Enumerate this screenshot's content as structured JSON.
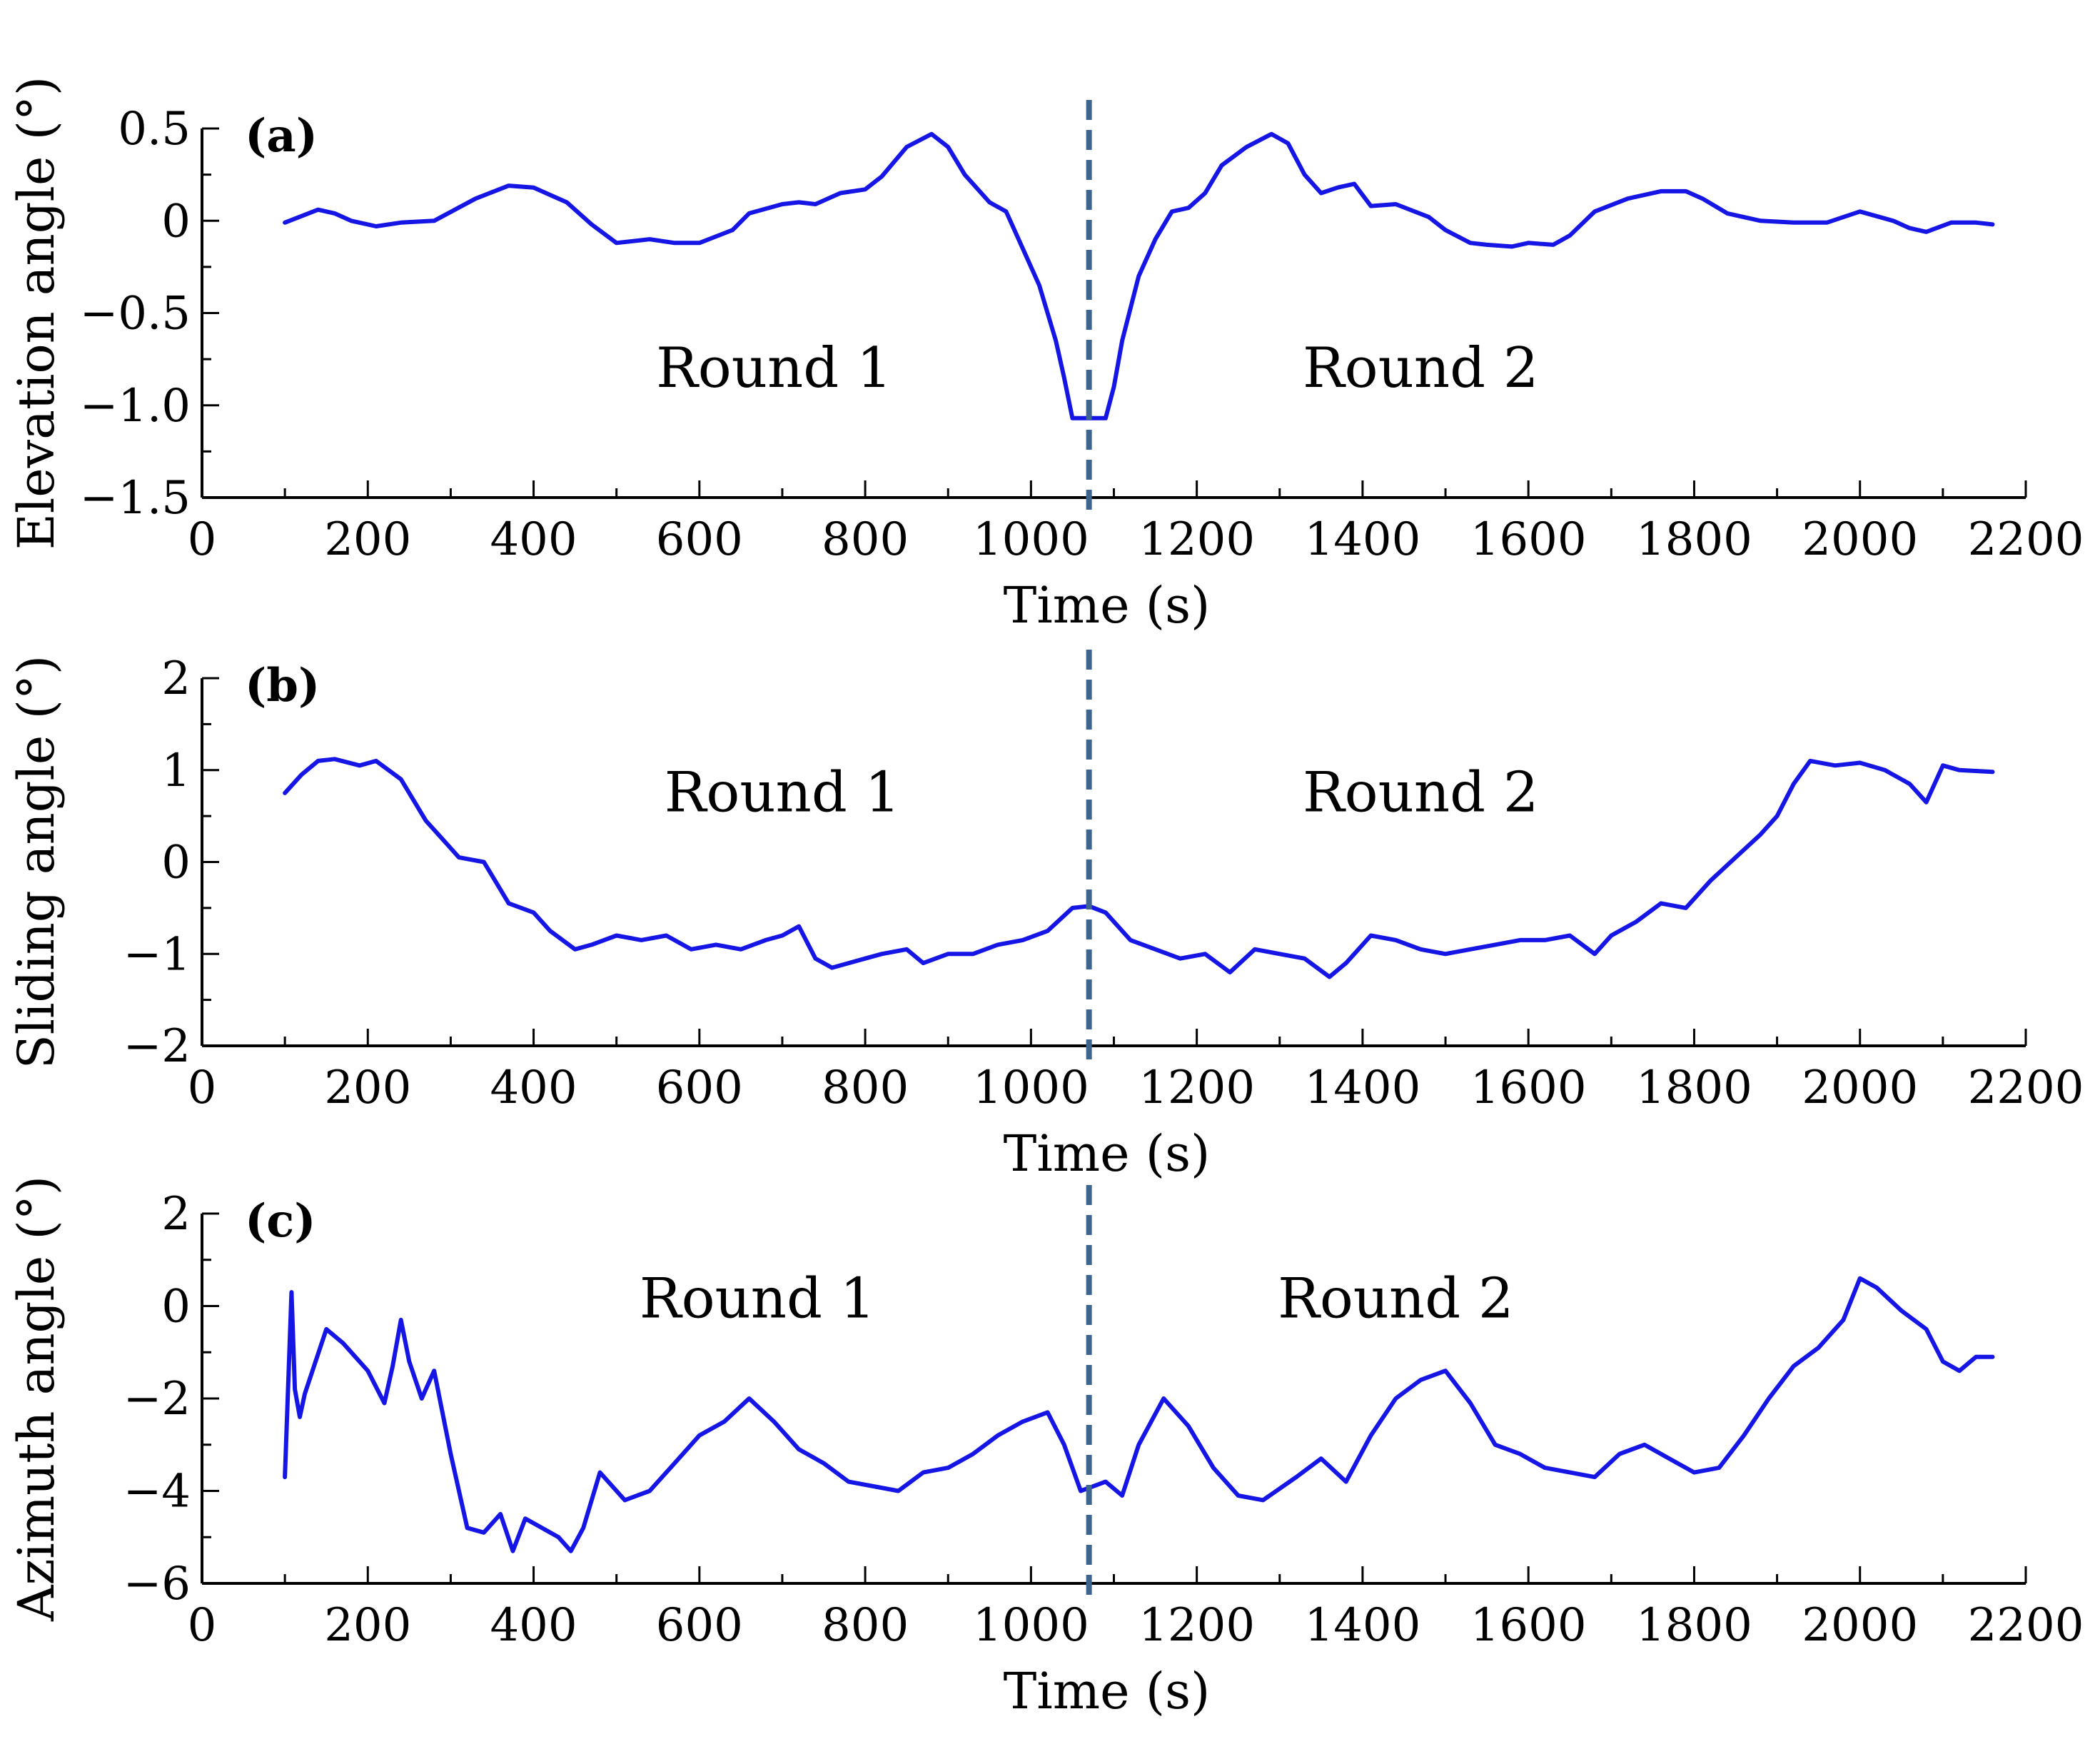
{
  "colors": {
    "series": "#1515e6",
    "divider": "#3d6590"
  },
  "chart_data": [
    {
      "type": "line",
      "panel": "(a)",
      "xlabel": "Time (s)",
      "ylabel": "Elevation angle (°)",
      "xlim": [
        0,
        2200
      ],
      "ylim": [
        -1.5,
        0.5
      ],
      "xticks": [
        0,
        200,
        400,
        600,
        800,
        1000,
        1200,
        1400,
        1600,
        1800,
        2000,
        2200
      ],
      "xtick_labels": [
        "0",
        "200",
        "400",
        "600",
        "800",
        "1000",
        "1200",
        "1400",
        "1600",
        "1800",
        "2000",
        "2200"
      ],
      "yticks": [
        -1.5,
        -1.0,
        -0.5,
        0,
        0.5
      ],
      "ytick_labels": [
        "−1.5",
        "−1.0",
        "−0.5",
        "0",
        "0.5"
      ],
      "divider_x": 1070,
      "annotations": [
        {
          "text": "Round 1",
          "x": 690,
          "y": -0.9
        },
        {
          "text": "Round 2",
          "x": 1470,
          "y": -0.9
        }
      ],
      "series": [
        {
          "name": "Elevation angle",
          "x": [
            100,
            140,
            160,
            180,
            210,
            240,
            280,
            330,
            370,
            400,
            440,
            470,
            500,
            540,
            570,
            600,
            640,
            660,
            700,
            720,
            740,
            770,
            800,
            820,
            850,
            880,
            900,
            920,
            950,
            970,
            990,
            1010,
            1030,
            1040,
            1050,
            1060,
            1070,
            1080,
            1090,
            1100,
            1110,
            1130,
            1150,
            1170,
            1190,
            1210,
            1230,
            1260,
            1290,
            1310,
            1330,
            1350,
            1370,
            1390,
            1410,
            1440,
            1480,
            1500,
            1530,
            1550,
            1580,
            1600,
            1630,
            1650,
            1680,
            1720,
            1760,
            1790,
            1810,
            1840,
            1880,
            1920,
            1960,
            2000,
            2040,
            2060,
            2080,
            2110,
            2140,
            2160
          ],
          "y": [
            -0.01,
            0.06,
            0.04,
            0.0,
            -0.03,
            -0.01,
            0.0,
            0.12,
            0.19,
            0.18,
            0.1,
            -0.02,
            -0.12,
            -0.1,
            -0.12,
            -0.12,
            -0.05,
            0.04,
            0.09,
            0.1,
            0.09,
            0.15,
            0.17,
            0.24,
            0.4,
            0.47,
            0.4,
            0.25,
            0.1,
            0.05,
            -0.15,
            -0.35,
            -0.65,
            -0.85,
            -1.07,
            -1.07,
            -1.07,
            -1.07,
            -1.07,
            -0.9,
            -0.65,
            -0.3,
            -0.1,
            0.05,
            0.07,
            0.15,
            0.3,
            0.4,
            0.47,
            0.42,
            0.25,
            0.15,
            0.18,
            0.2,
            0.08,
            0.09,
            0.02,
            -0.05,
            -0.12,
            -0.13,
            -0.14,
            -0.12,
            -0.13,
            -0.08,
            0.05,
            0.12,
            0.16,
            0.16,
            0.12,
            0.04,
            0.0,
            -0.01,
            -0.01,
            0.05,
            0.0,
            -0.04,
            -0.06,
            -0.01,
            -0.01,
            -0.02
          ]
        }
      ]
    },
    {
      "type": "line",
      "panel": "(b)",
      "xlabel": "Time (s)",
      "ylabel": "Sliding angle (°)",
      "xlim": [
        0,
        2200
      ],
      "ylim": [
        -2,
        2
      ],
      "xticks": [
        0,
        200,
        400,
        600,
        800,
        1000,
        1200,
        1400,
        1600,
        1800,
        2000,
        2200
      ],
      "xtick_labels": [
        "0",
        "200",
        "400",
        "600",
        "800",
        "1000",
        "1200",
        "1400",
        "1600",
        "1800",
        "2000",
        "2200"
      ],
      "yticks": [
        -2,
        -1,
        0,
        1,
        2
      ],
      "ytick_labels": [
        "−2",
        "−1",
        "0",
        "1",
        "2"
      ],
      "divider_x": 1070,
      "annotations": [
        {
          "text": "Round 1",
          "x": 700,
          "y": 0.55
        },
        {
          "text": "Round 2",
          "x": 1470,
          "y": 0.55
        }
      ],
      "series": [
        {
          "name": "Sliding angle",
          "x": [
            100,
            120,
            140,
            160,
            190,
            210,
            240,
            270,
            290,
            310,
            340,
            370,
            400,
            420,
            450,
            470,
            500,
            530,
            560,
            590,
            620,
            650,
            680,
            700,
            720,
            740,
            760,
            780,
            800,
            820,
            850,
            870,
            900,
            930,
            960,
            990,
            1020,
            1050,
            1070,
            1090,
            1120,
            1150,
            1180,
            1210,
            1240,
            1270,
            1300,
            1330,
            1360,
            1380,
            1410,
            1440,
            1470,
            1500,
            1530,
            1560,
            1590,
            1620,
            1650,
            1680,
            1700,
            1730,
            1760,
            1790,
            1820,
            1850,
            1880,
            1900,
            1920,
            1940,
            1970,
            2000,
            2030,
            2060,
            2080,
            2100,
            2120,
            2160
          ],
          "y": [
            0.75,
            0.95,
            1.1,
            1.12,
            1.05,
            1.1,
            0.9,
            0.45,
            0.25,
            0.05,
            0.0,
            -0.45,
            -0.55,
            -0.75,
            -0.95,
            -0.9,
            -0.8,
            -0.85,
            -0.8,
            -0.95,
            -0.9,
            -0.95,
            -0.85,
            -0.8,
            -0.7,
            -1.05,
            -1.15,
            -1.1,
            -1.05,
            -1.0,
            -0.95,
            -1.1,
            -1.0,
            -1.0,
            -0.9,
            -0.85,
            -0.75,
            -0.5,
            -0.48,
            -0.55,
            -0.85,
            -0.95,
            -1.05,
            -1.0,
            -1.2,
            -0.95,
            -1.0,
            -1.05,
            -1.25,
            -1.1,
            -0.8,
            -0.85,
            -0.95,
            -1.0,
            -0.95,
            -0.9,
            -0.85,
            -0.85,
            -0.8,
            -1.0,
            -0.8,
            -0.65,
            -0.45,
            -0.5,
            -0.2,
            0.05,
            0.3,
            0.5,
            0.85,
            1.1,
            1.05,
            1.08,
            1.0,
            0.85,
            0.65,
            1.05,
            1.0,
            0.98
          ]
        }
      ]
    },
    {
      "type": "line",
      "panel": "(c)",
      "xlabel": "Time (s)",
      "ylabel": "Azimuth angle (°)",
      "xlim": [
        0,
        2200
      ],
      "ylim": [
        -6,
        2
      ],
      "xticks": [
        0,
        200,
        400,
        600,
        800,
        1000,
        1200,
        1400,
        1600,
        1800,
        2000,
        2200
      ],
      "xtick_labels": [
        "0",
        "200",
        "400",
        "600",
        "800",
        "1000",
        "1200",
        "1400",
        "1600",
        "1800",
        "2000",
        "2200"
      ],
      "yticks": [
        -6,
        -4,
        -2,
        0,
        2
      ],
      "ytick_labels": [
        "−6",
        "−4",
        "−2",
        "0",
        "2"
      ],
      "divider_x": 1070,
      "annotations": [
        {
          "text": "Round 1",
          "x": 670,
          "y": -0.25
        },
        {
          "text": "Round 2",
          "x": 1440,
          "y": -0.25
        }
      ],
      "series": [
        {
          "name": "Azimuth angle",
          "x": [
            100,
            108,
            112,
            118,
            124,
            150,
            170,
            200,
            220,
            230,
            240,
            250,
            265,
            280,
            300,
            320,
            340,
            360,
            375,
            390,
            410,
            430,
            445,
            460,
            480,
            510,
            540,
            570,
            600,
            630,
            660,
            690,
            720,
            750,
            780,
            810,
            840,
            870,
            900,
            930,
            960,
            990,
            1020,
            1040,
            1060,
            1090,
            1110,
            1130,
            1160,
            1190,
            1220,
            1250,
            1280,
            1320,
            1350,
            1380,
            1410,
            1440,
            1470,
            1500,
            1530,
            1560,
            1590,
            1620,
            1650,
            1680,
            1710,
            1740,
            1770,
            1800,
            1830,
            1860,
            1890,
            1920,
            1950,
            1980,
            2000,
            2020,
            2050,
            2080,
            2100,
            2120,
            2140,
            2160
          ],
          "y": [
            -3.7,
            0.3,
            -1.8,
            -2.4,
            -1.9,
            -0.5,
            -0.8,
            -1.4,
            -2.1,
            -1.3,
            -0.3,
            -1.2,
            -2.0,
            -1.4,
            -3.2,
            -4.8,
            -4.9,
            -4.5,
            -5.3,
            -4.6,
            -4.8,
            -5.0,
            -5.3,
            -4.8,
            -3.6,
            -4.2,
            -4.0,
            -3.4,
            -2.8,
            -2.5,
            -2.0,
            -2.5,
            -3.1,
            -3.4,
            -3.8,
            -3.9,
            -4.0,
            -3.6,
            -3.5,
            -3.2,
            -2.8,
            -2.5,
            -2.3,
            -3.0,
            -4.0,
            -3.8,
            -4.1,
            -3.0,
            -2.0,
            -2.6,
            -3.5,
            -4.1,
            -4.2,
            -3.7,
            -3.3,
            -3.8,
            -2.8,
            -2.0,
            -1.6,
            -1.4,
            -2.1,
            -3.0,
            -3.2,
            -3.5,
            -3.6,
            -3.7,
            -3.2,
            -3.0,
            -3.3,
            -3.6,
            -3.5,
            -2.8,
            -2.0,
            -1.3,
            -0.9,
            -0.3,
            0.6,
            0.4,
            -0.1,
            -0.5,
            -1.2,
            -1.4,
            -1.1,
            -1.1
          ]
        }
      ]
    }
  ]
}
